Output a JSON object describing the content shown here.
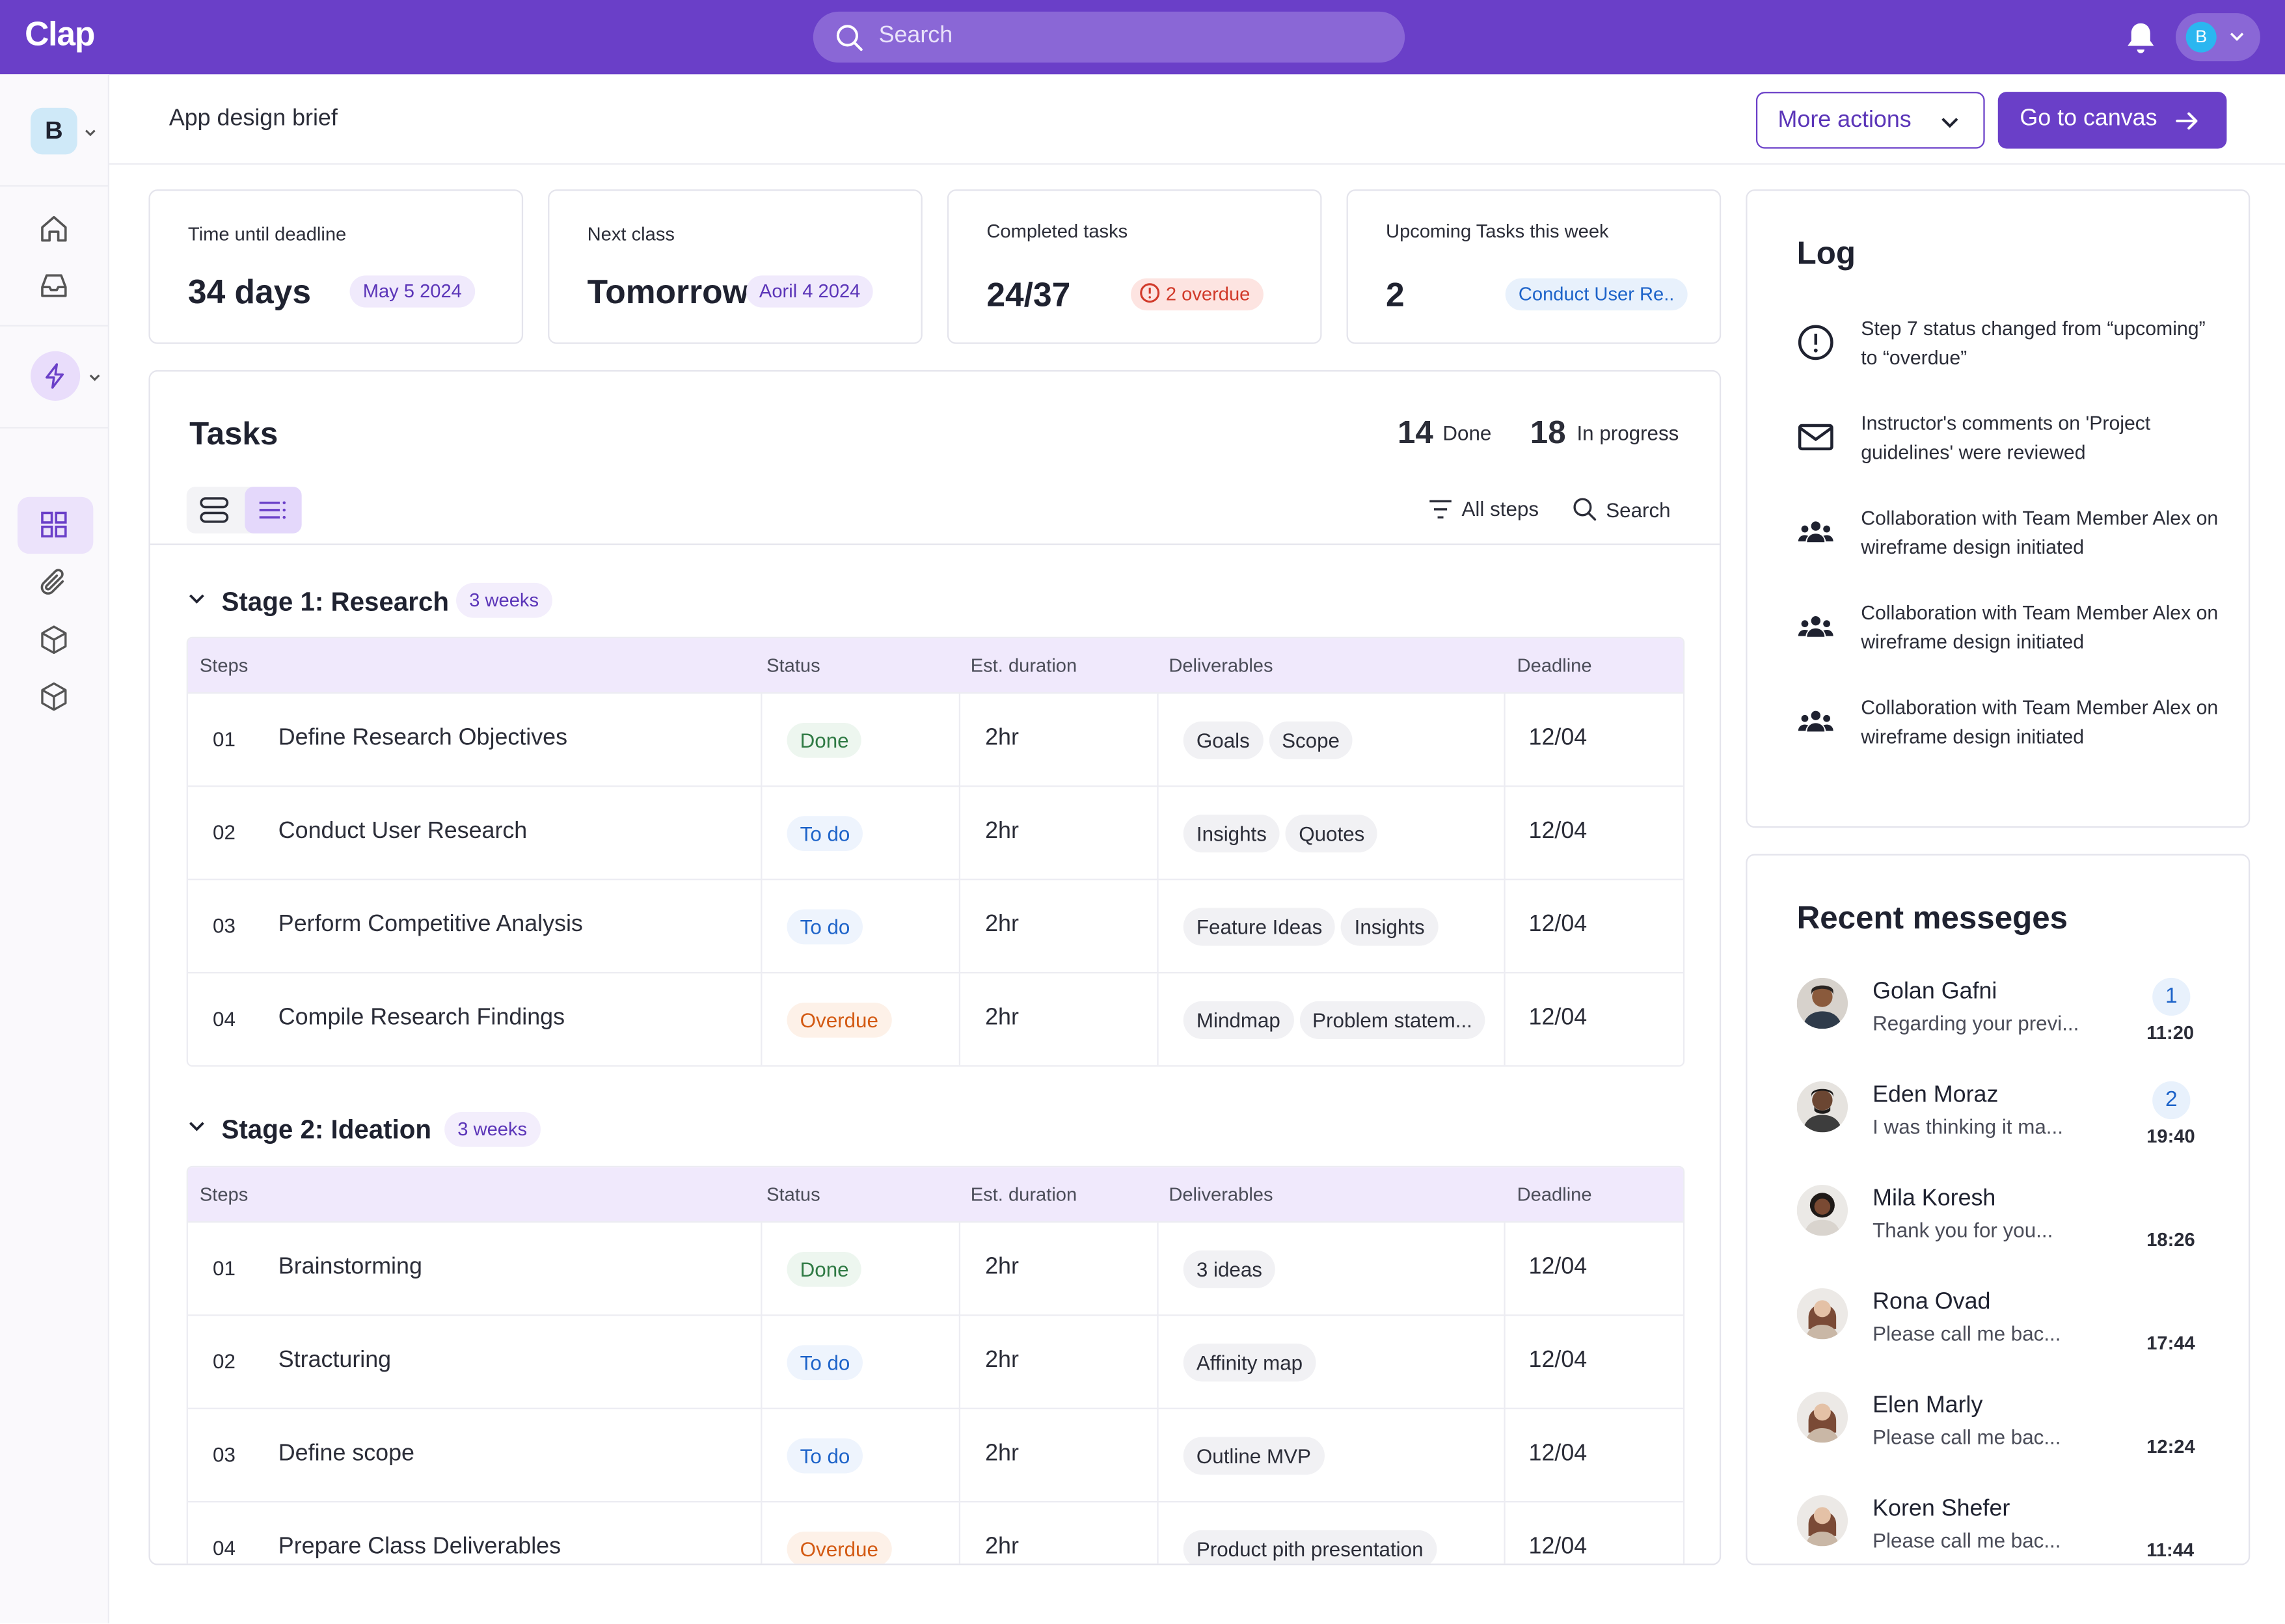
{
  "app": {
    "logo": "Clap",
    "search_placeholder": "Search",
    "user_initial": "B"
  },
  "sidebar": {
    "workspace_initial": "B"
  },
  "header": {
    "title": "App design brief",
    "more_actions": "More actions",
    "go_to_canvas": "Go to canvas"
  },
  "stats": [
    {
      "label": "Time until deadline",
      "value": "34 days",
      "tag": "May 5 2024"
    },
    {
      "label": "Next class",
      "value": "Tomorrow",
      "tag": "Aoril 4 2024"
    },
    {
      "label": "Completed tasks",
      "value": "24/37",
      "tag": "2 overdue"
    },
    {
      "label": "Upcoming Tasks this week",
      "value": "2",
      "tag": "Conduct User Re.."
    }
  ],
  "tasks": {
    "title": "Tasks",
    "done_count": "14",
    "done_label": "Done",
    "progress_count": "18",
    "progress_label": "In progress",
    "filter_label": "All steps",
    "search_label": "Search",
    "columns": [
      "Steps",
      "Status",
      "Est. duration",
      "Deliverables",
      "Deadline"
    ],
    "stages": [
      {
        "title": "Stage 1: Research",
        "duration": "3 weeks",
        "rows": [
          {
            "num": "01",
            "name": "Define Research Objectives",
            "status": "Done",
            "duration": "2hr",
            "deliverables": [
              "Goals",
              "Scope"
            ],
            "deadline": "12/04"
          },
          {
            "num": "02",
            "name": "Conduct User Research",
            "status": "To do",
            "duration": "2hr",
            "deliverables": [
              "Insights",
              "Quotes"
            ],
            "deadline": "12/04"
          },
          {
            "num": "03",
            "name": "Perform Competitive Analysis",
            "status": "To do",
            "duration": "2hr",
            "deliverables": [
              "Feature Ideas",
              "Insights"
            ],
            "deadline": "12/04"
          },
          {
            "num": "04",
            "name": "Compile Research Findings",
            "status": "Overdue",
            "duration": "2hr",
            "deliverables": [
              "Mindmap",
              "Problem statem..."
            ],
            "deadline": "12/04"
          }
        ]
      },
      {
        "title": "Stage 2: Ideation",
        "duration": "3 weeks",
        "rows": [
          {
            "num": "01",
            "name": "Brainstorming",
            "status": "Done",
            "duration": "2hr",
            "deliverables": [
              "3 ideas"
            ],
            "deadline": "12/04"
          },
          {
            "num": "02",
            "name": "Stracturing",
            "status": "To do",
            "duration": "2hr",
            "deliverables": [
              "Affinity map"
            ],
            "deadline": "12/04"
          },
          {
            "num": "03",
            "name": "Define scope",
            "status": "To do",
            "duration": "2hr",
            "deliverables": [
              "Outline MVP"
            ],
            "deadline": "12/04"
          },
          {
            "num": "04",
            "name": "Prepare Class Deliverables",
            "status": "Overdue",
            "duration": "2hr",
            "deliverables": [
              "Product pith presentation"
            ],
            "deadline": "12/04"
          }
        ]
      }
    ]
  },
  "log": {
    "title": "Log",
    "items": [
      {
        "icon": "alert-circle-icon",
        "text": "Step 7 status changed from “upcoming” to “overdue”"
      },
      {
        "icon": "mail-icon",
        "text": "Instructor's comments on 'Project guidelines' were reviewed"
      },
      {
        "icon": "team-icon",
        "text": "Collaboration with Team Member Alex on wireframe design initiated"
      },
      {
        "icon": "team-icon",
        "text": "Collaboration with Team Member Alex on wireframe design initiated"
      },
      {
        "icon": "team-icon",
        "text": "Collaboration with Team Member Alex on wireframe design initiated"
      }
    ]
  },
  "messages": {
    "title": "Recent messeges",
    "items": [
      {
        "name": "Golan Gafni",
        "preview": "Regarding your previ...",
        "badge": "1",
        "time": "11:20"
      },
      {
        "name": "Eden Moraz",
        "preview": "I was thinking it ma...",
        "badge": "2",
        "time": "19:40"
      },
      {
        "name": "Mila Koresh",
        "preview": "Thank you for you...",
        "badge": "",
        "time": "18:26"
      },
      {
        "name": "Rona Ovad",
        "preview": "Please call me bac...",
        "badge": "",
        "time": "17:44"
      },
      {
        "name": "Elen Marly",
        "preview": "Please call me bac...",
        "badge": "",
        "time": "12:24"
      },
      {
        "name": "Koren Shefer",
        "preview": "Please call me bac...",
        "badge": "",
        "time": "11:44"
      }
    ]
  },
  "colors": {
    "brand": "#6a3fc8",
    "done": "#2f7a44",
    "todo": "#1d63c9",
    "overdue": "#d35a13"
  }
}
